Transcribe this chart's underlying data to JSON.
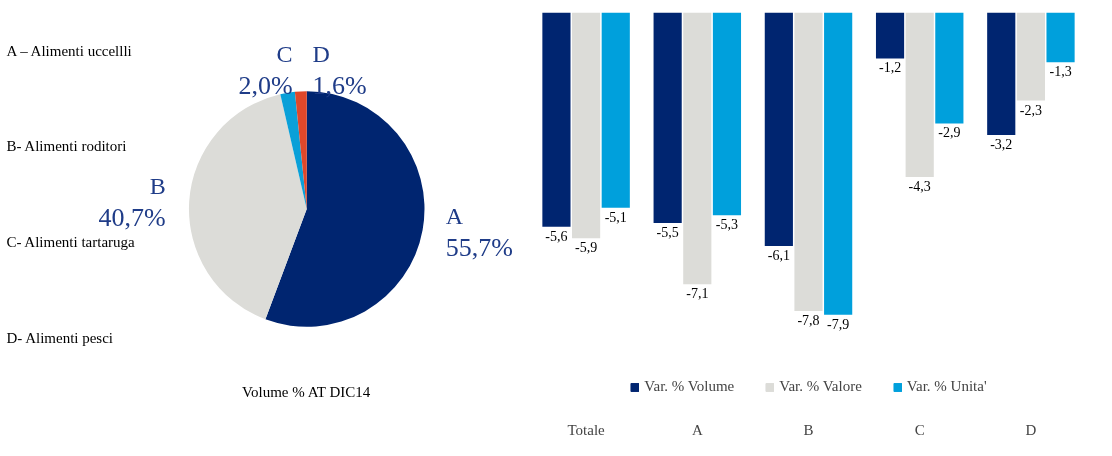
{
  "chart_data": [
    {
      "type": "pie",
      "title": "Volume % AT DIC14",
      "categories": [
        "A",
        "B",
        "C",
        "D"
      ],
      "values": [
        55.7,
        40.7,
        2.0,
        1.6
      ],
      "colors": [
        "#002570",
        "#dcdcd8",
        "#0aa0d8",
        "#e0482a"
      ],
      "value_labels": [
        "55,7%",
        "40,7%",
        "2,0%",
        "1,6%"
      ],
      "annotations": [
        "A – Alimenti uccellli",
        "B- Alimenti roditori",
        "C- Alimenti tartaruga",
        "D- Alimenti pesci"
      ]
    },
    {
      "type": "bar",
      "categories": [
        "Totale",
        "A",
        "B",
        "C",
        "D"
      ],
      "legend": "bottom",
      "series": [
        {
          "name": "Var. % Volume",
          "color": "#002570",
          "values": [
            -5.6,
            -5.5,
            -6.1,
            -1.2,
            -3.2
          ],
          "value_labels": [
            "-5,6",
            "-5,5",
            "-6,1",
            "-1,2",
            "-3,2"
          ]
        },
        {
          "name": "Var. % Valore",
          "color": "#dcdcd8",
          "values": [
            -5.9,
            -7.1,
            -7.8,
            -4.3,
            -2.3
          ],
          "value_labels": [
            "-5,9",
            "-7,1",
            "-7,8",
            "-4,3",
            "-2,3"
          ]
        },
        {
          "name": "Var. % Unita'",
          "color": "#00a0dc",
          "values": [
            -5.1,
            -5.3,
            -7.9,
            -2.9,
            -1.3
          ],
          "value_labels": [
            "-5,1",
            "-5,3",
            "-7,9",
            "-2,9",
            "-1,3"
          ]
        }
      ]
    }
  ]
}
